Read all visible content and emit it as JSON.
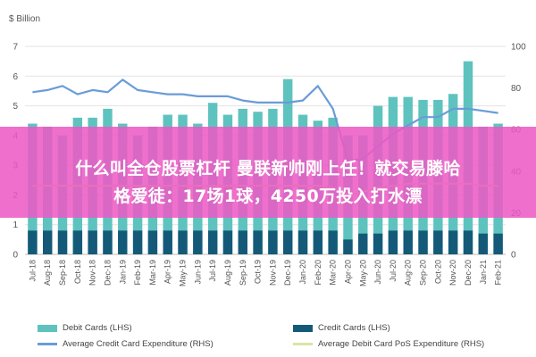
{
  "chart_data": {
    "type": "bar",
    "unit_label": "$ Billion",
    "categories": [
      "Jul-18",
      "Aug-18",
      "Sep-18",
      "Oct-18",
      "Nov-18",
      "Dec-18",
      "Jan-19",
      "Feb-19",
      "Mar-19",
      "Apr-19",
      "May-19",
      "Jun-19",
      "Jul-19",
      "Aug-19",
      "Sep-19",
      "Oct-19",
      "Nov-19",
      "Dec-19",
      "Jan-20",
      "Feb-20",
      "Mar-20",
      "Apr-20",
      "May-20",
      "Jun-20",
      "Jul-20",
      "Aug-20",
      "Sep-20",
      "Oct-20",
      "Nov-20",
      "Dec-20",
      "Jan-21",
      "Feb-21"
    ],
    "left_axis": {
      "min": 0,
      "max": 7,
      "ticks": [
        0,
        1,
        2,
        3,
        4,
        5,
        6,
        7
      ]
    },
    "right_axis": {
      "min": 0,
      "max": 100,
      "ticks": [
        0,
        20,
        40,
        60,
        80,
        100
      ]
    },
    "series": [
      {
        "name": "Debit Cards (LHS)",
        "kind": "bar",
        "axis": "left",
        "color": "#5ec3be",
        "values": [
          4.4,
          4.3,
          4.0,
          4.6,
          4.6,
          4.9,
          4.4,
          4.0,
          4.3,
          4.7,
          4.7,
          4.4,
          5.1,
          4.7,
          4.9,
          4.8,
          4.9,
          5.9,
          4.7,
          4.5,
          4.6,
          4.0,
          4.0,
          5.0,
          5.3,
          5.3,
          5.2,
          5.2,
          5.4,
          6.5,
          4.3,
          4.4
        ]
      },
      {
        "name": "Credit Cards (LHS)",
        "kind": "bar",
        "axis": "left",
        "color": "#145a78",
        "values": [
          0.8,
          0.8,
          0.8,
          0.8,
          0.8,
          0.8,
          0.8,
          0.8,
          0.8,
          0.8,
          0.8,
          0.8,
          0.8,
          0.8,
          0.8,
          0.8,
          0.8,
          0.8,
          0.8,
          0.8,
          0.8,
          0.5,
          0.7,
          0.7,
          0.8,
          0.8,
          0.8,
          0.8,
          0.8,
          0.8,
          0.7,
          0.7
        ]
      },
      {
        "name": "Average Credit Card Expenditure (RHS)",
        "kind": "line",
        "axis": "right",
        "color": "#6a9cd8",
        "values": [
          78,
          79,
          81,
          77,
          79,
          78,
          84,
          79,
          78,
          77,
          77,
          76,
          76,
          76,
          74,
          73,
          73,
          73,
          74,
          81,
          70,
          45,
          46,
          52,
          58,
          62,
          66,
          66,
          70,
          70,
          69,
          68
        ]
      },
      {
        "name": "Average Debit Card PoS Expenditure (RHS)",
        "kind": "line",
        "axis": "right",
        "color": "#d9e6a6",
        "values": [
          33,
          33,
          33,
          33,
          33,
          33,
          33,
          33,
          33,
          33,
          33,
          33,
          33,
          33,
          33,
          33,
          33,
          33,
          33,
          33,
          32,
          28,
          30,
          32,
          33,
          34,
          34,
          34,
          34,
          34,
          33,
          33
        ]
      }
    ]
  },
  "overlay": {
    "line1": "什么叫全仓股票杠杆 曼联新帅刚上任！就交易滕哈",
    "line2": "格爱徒：17场1球，4250万投入打水漂"
  }
}
